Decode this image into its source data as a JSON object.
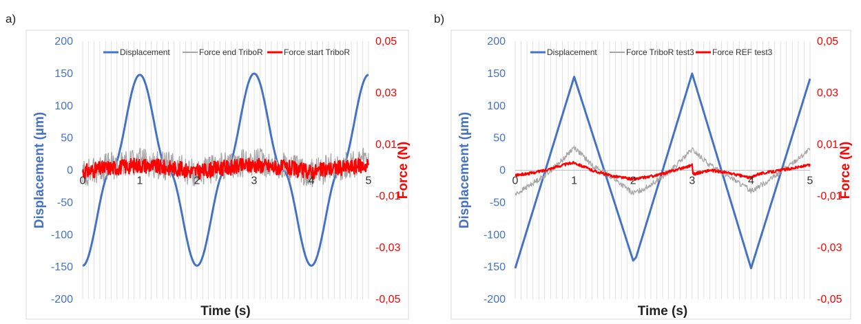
{
  "panels": [
    {
      "label": "a)"
    },
    {
      "label": "b)"
    }
  ],
  "colors": {
    "displacement": "#4472c4",
    "force_primary": "#a6a6a6",
    "force_secondary": "#ff0000",
    "grid": "#d9d9d9"
  },
  "chart_data": [
    {
      "type": "line",
      "panel": "a)",
      "title": "",
      "xlabel": "Time (s)",
      "ylabel": "Displacement (µm)",
      "y2label": "Force (N)",
      "xlim": [
        0,
        5
      ],
      "ylim": [
        -200,
        200
      ],
      "y2lim": [
        -0.05,
        0.05
      ],
      "x_ticks": [
        "0",
        "1",
        "2",
        "3",
        "4",
        "5"
      ],
      "y_ticks": [
        "200",
        "150",
        "100",
        "50",
        "0",
        "-50",
        "-100",
        "-150",
        "-200"
      ],
      "y2_ticks": [
        "0,05",
        "0,03",
        "0,01",
        "-0,01",
        "-0,03",
        "-0,05"
      ],
      "grid": true,
      "legend_position": "top",
      "series": [
        {
          "name": "Displacement",
          "axis": "left",
          "shape": "sine",
          "x": [
            0,
            0.5,
            1,
            1.5,
            2,
            2.5,
            3,
            3.5,
            4,
            4.5,
            5
          ],
          "values": [
            -148,
            0,
            148,
            0,
            -148,
            0,
            150,
            0,
            -148,
            0,
            148
          ]
        },
        {
          "name": "Force end TriboR",
          "axis": "right",
          "shape": "noisy-sine",
          "x": [
            0,
            0.5,
            1,
            1.5,
            2,
            2.5,
            3,
            3.5,
            4,
            4.5,
            5
          ],
          "values": [
            -0.001,
            0.0015,
            0.0035,
            0.0015,
            -0.001,
            0.0015,
            0.0035,
            0.0015,
            -0.001,
            0.0015,
            0.0035
          ],
          "noise": 0.0055
        },
        {
          "name": "Force start TriboR",
          "axis": "right",
          "shape": "noisy-sine",
          "x": [
            0,
            0.5,
            1,
            1.5,
            2,
            2.5,
            3,
            3.5,
            4,
            4.5,
            5
          ],
          "values": [
            -0.0005,
            0.001,
            0.002,
            0.001,
            -0.0005,
            0.001,
            0.002,
            0.001,
            -0.0005,
            0.001,
            0.002
          ],
          "noise": 0.003
        }
      ]
    },
    {
      "type": "line",
      "panel": "b)",
      "title": "",
      "xlabel": "Time (s)",
      "ylabel": "Displacement (µm)",
      "y2label": "Force (N)",
      "xlim": [
        0,
        5
      ],
      "ylim": [
        -200,
        200
      ],
      "y2lim": [
        -0.05,
        0.05
      ],
      "x_ticks": [
        "0",
        "1",
        "2",
        "3",
        "4",
        "5"
      ],
      "y_ticks": [
        "200",
        "150",
        "100",
        "50",
        "0",
        "-50",
        "-100",
        "-150",
        "-200"
      ],
      "y2_ticks": [
        "0,05",
        "0,03",
        "0,01",
        "-0,01",
        "-0,03",
        "-0,05"
      ],
      "grid": true,
      "legend_position": "top",
      "series": [
        {
          "name": "Displacement",
          "axis": "left",
          "shape": "linear",
          "x": [
            0,
            1,
            2,
            2.05,
            3,
            4,
            5
          ],
          "values": [
            -152,
            145,
            -140,
            -135,
            150,
            -152,
            142
          ]
        },
        {
          "name": "Force TriboR test3",
          "axis": "right",
          "shape": "linear",
          "x": [
            0,
            0.3,
            0.5,
            0.8,
            1.0,
            1.3,
            1.6,
            2.0,
            2.2,
            2.6,
            3.0,
            3.3,
            3.6,
            4.0,
            4.3,
            4.6,
            5.0
          ],
          "values": [
            -0.0095,
            -0.005,
            -0.002,
            0.004,
            0.009,
            0.002,
            -0.002,
            -0.009,
            -0.007,
            -0.001,
            0.008,
            0.002,
            -0.002,
            -0.008,
            -0.004,
            0.001,
            0.008
          ],
          "noise": 0.001
        },
        {
          "name": "Force REF test3",
          "axis": "right",
          "shape": "linear",
          "x": [
            0,
            0.3,
            0.5,
            0.8,
            1.0,
            1.3,
            1.6,
            2.0,
            2.4,
            3.0,
            3.02,
            3.3,
            3.6,
            4.0,
            4.1,
            4.5,
            5.0
          ],
          "values": [
            -0.002,
            -0.001,
            0.0,
            0.002,
            0.003,
            0.0,
            -0.002,
            -0.0035,
            -0.002,
            0.002,
            -0.0015,
            0.0,
            -0.001,
            -0.003,
            -0.0015,
            0.0,
            0.002
          ],
          "noise": 0.0005
        }
      ]
    }
  ]
}
